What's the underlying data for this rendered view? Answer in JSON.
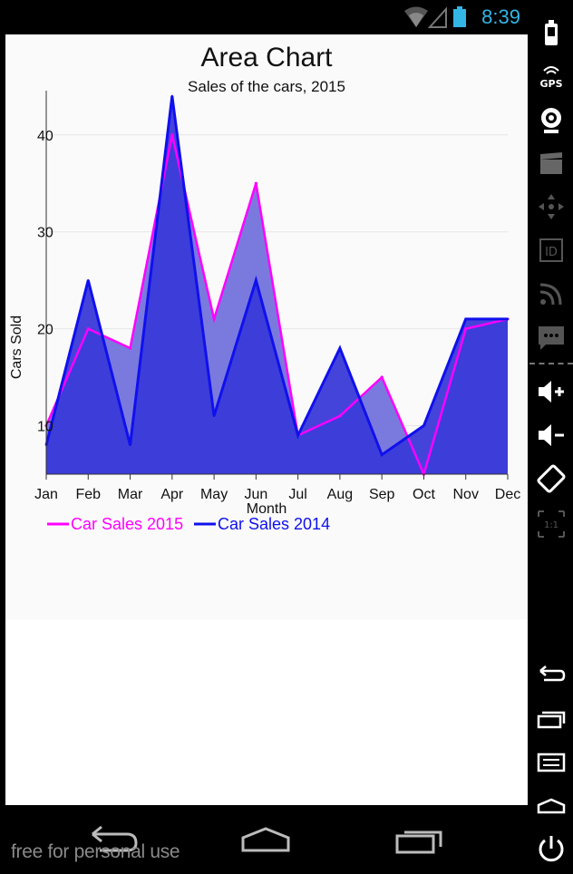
{
  "status_bar": {
    "time": "8:39"
  },
  "watermark": "free for personal use",
  "colors": {
    "accent": "#33b5e5",
    "series_2015": "#ff00ff",
    "series_2014": "#1010ee",
    "fill": "#3a3ad8"
  },
  "side_panel": {
    "icons": [
      "battery-icon",
      "gps-icon",
      "camera-icon",
      "video-icon",
      "dpad-icon",
      "id-icon",
      "rss-icon",
      "sms-icon",
      "volume-up-icon",
      "volume-down-icon",
      "rotate-icon",
      "scale-icon",
      "back-icon",
      "recent-apps-icon",
      "menu-icon",
      "home-icon",
      "power-icon"
    ],
    "gps_label": "GPS",
    "id_label": "ID",
    "scale_label": "1:1"
  },
  "chart_data": {
    "type": "area",
    "title": "Area Chart",
    "subtitle": "Sales of the cars, 2015",
    "xlabel": "Month",
    "ylabel": "Cars Sold",
    "categories": [
      "Jan",
      "Feb",
      "Mar",
      "Apr",
      "May",
      "Jun",
      "Jul",
      "Aug",
      "Sep",
      "Oct",
      "Nov",
      "Dec"
    ],
    "yticks": [
      "10",
      "20",
      "30",
      "40"
    ],
    "ylim": [
      5,
      44
    ],
    "grid": true,
    "legend_position": "bottom-left",
    "series": [
      {
        "name": "Car Sales 2015",
        "color": "#ff00ff",
        "values": [
          10,
          20,
          18,
          40,
          21,
          35,
          9,
          11,
          15,
          5,
          20,
          21
        ]
      },
      {
        "name": "Car Sales 2014",
        "color": "#1010ee",
        "values": [
          8,
          25,
          8,
          44,
          11,
          25,
          9,
          18,
          7,
          10,
          21,
          21
        ]
      }
    ]
  }
}
